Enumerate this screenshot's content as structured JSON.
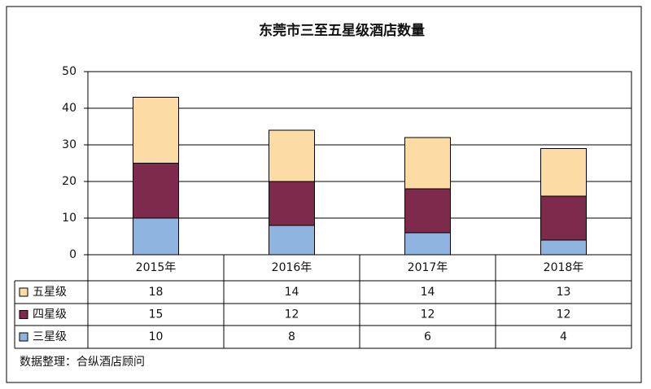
{
  "chart_data": {
    "type": "stacked-bar",
    "title": "东莞市三至五星级酒店数量",
    "categories": [
      "2015年",
      "2016年",
      "2017年",
      "2018年"
    ],
    "series": [
      {
        "name": "五星级",
        "color": "#fcdca4",
        "values": [
          18,
          14,
          14,
          13
        ]
      },
      {
        "name": "四星级",
        "color": "#7e2a4c",
        "values": [
          15,
          12,
          12,
          12
        ]
      },
      {
        "name": "三星级",
        "color": "#8fb4e0",
        "values": [
          10,
          8,
          6,
          4
        ]
      }
    ],
    "ylim": [
      0,
      50
    ],
    "yticks": [
      0,
      10,
      20,
      30,
      40,
      50
    ],
    "grid": true,
    "source": "数据整理：合纵酒店顾问"
  }
}
